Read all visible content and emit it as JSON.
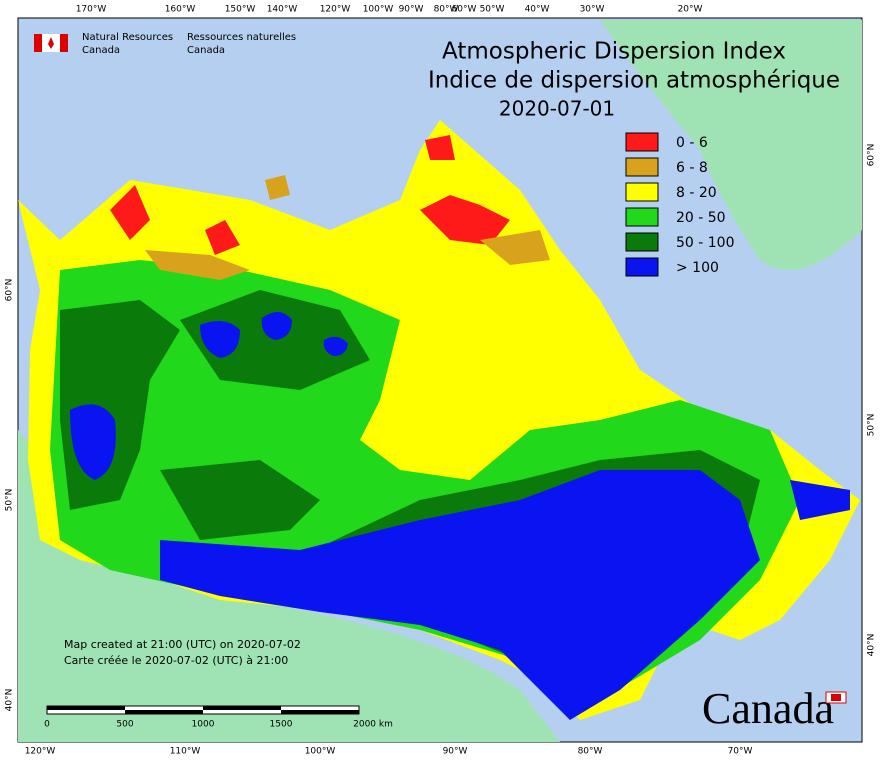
{
  "agency": {
    "en": [
      "Natural Resources",
      "Canada"
    ],
    "fr": [
      "Ressources naturelles",
      "Canada"
    ]
  },
  "title": {
    "en": "Atmospheric Dispersion Index",
    "fr": "Indice de dispersion atmosphérique",
    "date": "2020-07-01"
  },
  "legend": [
    {
      "label": "0 - 6",
      "color": "#ff1a1a"
    },
    {
      "label": "6 - 8",
      "color": "#d9a21c"
    },
    {
      "label": "8 - 20",
      "color": "#ffff00"
    },
    {
      "label": "20 - 50",
      "color": "#22d81a"
    },
    {
      "label": "50 - 100",
      "color": "#0a7a0a"
    },
    {
      "label": "> 100",
      "color": "#0a14f0"
    }
  ],
  "graticule": {
    "top": [
      "170°W",
      "160°W",
      "150°W",
      "140°W",
      "120°W",
      "100°W",
      "90°W",
      "80°W",
      "60°W",
      "50°W",
      "40°W",
      "30°W",
      "20°W"
    ],
    "bottom": [
      "120°W",
      "110°W",
      "100°W",
      "90°W",
      "80°W",
      "70°W"
    ],
    "left": [
      "60°N",
      "50°N",
      "40°N"
    ],
    "right": [
      "60°N",
      "50°N",
      "40°N"
    ]
  },
  "notes": [
    "Map created at 21:00 (UTC) on 2020-07-02",
    "Carte créée le 2020-07-02 (UTC) à 21:00"
  ],
  "scale": [
    "0",
    "500",
    "1000",
    "1500",
    "2000 km"
  ],
  "wordmark": "Canada"
}
